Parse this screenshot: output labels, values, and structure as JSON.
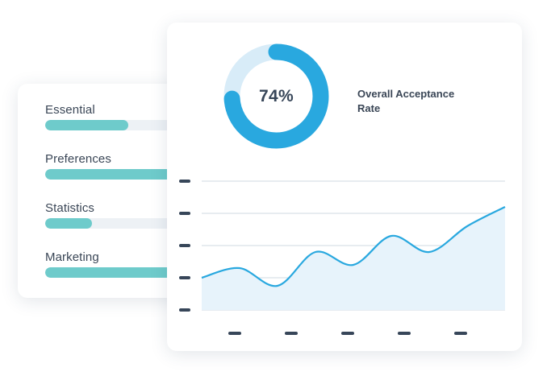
{
  "consent_categories": [
    {
      "label": "Essential",
      "fill_fraction": 0.6
    },
    {
      "label": "Preferences",
      "fill_fraction": 1.0
    },
    {
      "label": "Statistics",
      "fill_fraction": 0.34
    },
    {
      "label": "Marketing",
      "fill_fraction": 1.0
    }
  ],
  "acceptance": {
    "value_text": "74%",
    "value": 0.74,
    "caption": "Overall Acceptance Rate"
  },
  "colors": {
    "accent": "#29a8df",
    "accent_light": "#d8ecf8",
    "bar_fill": "#6ecbcb",
    "area_fill": "#e7f3fb",
    "tick_mark": "#374659",
    "grid": "#cfd8e2"
  },
  "chart_data": {
    "type": "area",
    "x": [
      0,
      1,
      2,
      3,
      4,
      5,
      6,
      7,
      8
    ],
    "y": [
      1.0,
      1.3,
      0.75,
      1.8,
      1.4,
      2.3,
      1.8,
      2.6,
      3.2
    ],
    "ylim": [
      0,
      4
    ],
    "x_ticks": 5,
    "y_ticks": 5,
    "tick_labels_shown": false,
    "grid": true
  }
}
